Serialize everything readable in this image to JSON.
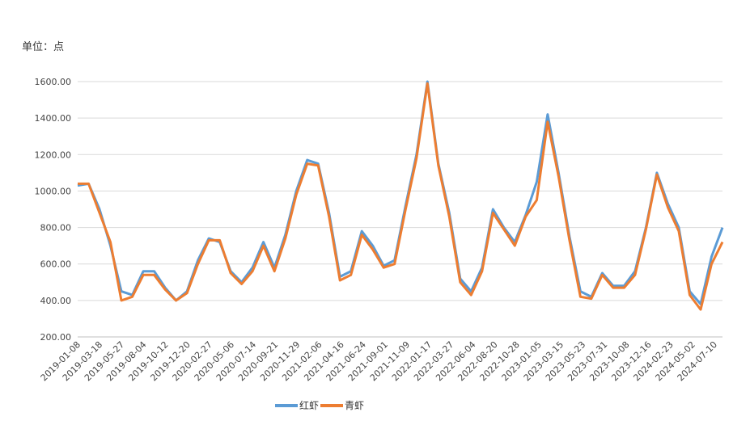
{
  "chart_data": {
    "type": "line",
    "unit_label": "单位：点",
    "ylim": [
      200,
      1600
    ],
    "yticks": [
      "200.00",
      "400.00",
      "600.00",
      "800.00",
      "1000.00",
      "1200.00",
      "1400.00",
      "1600.00"
    ],
    "xtick_labels": [
      "2019-01-08",
      "2019-03-18",
      "2019-05-27",
      "2019-08-04",
      "2019-10-12",
      "2019-12-20",
      "2020-02-27",
      "2020-05-06",
      "2020-07-14",
      "2020-09-21",
      "2020-11-29",
      "2021-02-06",
      "2021-04-16",
      "2021-06-24",
      "2021-09-01",
      "2021-11-09",
      "2022-01-17",
      "2022-03-27",
      "2022-06-04",
      "2022-08-20",
      "2022-10-28",
      "2023-01-05",
      "2023-03-15",
      "2023-05-23",
      "2023-07-31",
      "2023-10-08",
      "2023-12-16",
      "2024-02-23",
      "2024-05-02",
      "2024-07-10"
    ],
    "grid": true,
    "legend_position": "bottom",
    "colors": {
      "series1": "#5B9BD5",
      "series2": "#ED7D31"
    },
    "x": [
      "2019-01-08",
      "2019-02-12",
      "2019-03-18",
      "2019-04-22",
      "2019-05-27",
      "2019-07-01",
      "2019-08-04",
      "2019-09-08",
      "2019-10-12",
      "2019-11-16",
      "2019-12-20",
      "2020-01-24",
      "2020-02-27",
      "2020-04-02",
      "2020-05-06",
      "2020-06-10",
      "2020-07-14",
      "2020-08-18",
      "2020-09-21",
      "2020-10-26",
      "2020-11-29",
      "2021-01-03",
      "2021-02-06",
      "2021-03-13",
      "2021-04-16",
      "2021-05-21",
      "2021-06-24",
      "2021-07-29",
      "2021-09-01",
      "2021-10-06",
      "2021-11-09",
      "2021-12-14",
      "2022-01-17",
      "2022-02-21",
      "2022-03-27",
      "2022-05-01",
      "2022-06-04",
      "2022-07-12",
      "2022-08-20",
      "2022-09-24",
      "2022-10-28",
      "2022-12-02",
      "2023-01-05",
      "2023-02-10",
      "2023-03-15",
      "2023-04-19",
      "2023-05-23",
      "2023-06-27",
      "2023-07-31",
      "2023-09-04",
      "2023-10-08",
      "2023-11-12",
      "2023-12-16",
      "2024-01-20",
      "2024-02-23",
      "2024-03-28",
      "2024-05-02",
      "2024-06-06",
      "2024-07-10",
      "2024-08-14"
    ],
    "series": [
      {
        "name": "红虾",
        "values": [
          1030,
          1040,
          900,
          700,
          450,
          430,
          560,
          560,
          470,
          400,
          450,
          620,
          740,
          720,
          560,
          500,
          580,
          720,
          580,
          760,
          1000,
          1170,
          1150,
          880,
          530,
          560,
          780,
          700,
          590,
          620,
          920,
          1200,
          1600,
          1150,
          880,
          520,
          450,
          580,
          900,
          800,
          720,
          870,
          1050,
          1420,
          1100,
          750,
          450,
          420,
          550,
          480,
          480,
          560,
          800,
          1100,
          930,
          800,
          450,
          380,
          640,
          800
        ]
      },
      {
        "name": "青虾",
        "values": [
          1040,
          1040,
          880,
          720,
          400,
          420,
          540,
          540,
          460,
          400,
          440,
          600,
          730,
          730,
          550,
          490,
          560,
          700,
          560,
          740,
          980,
          1150,
          1140,
          860,
          510,
          540,
          760,
          680,
          580,
          600,
          900,
          1180,
          1590,
          1140,
          860,
          500,
          430,
          560,
          880,
          790,
          700,
          860,
          950,
          1380,
          1080,
          730,
          420,
          410,
          540,
          470,
          470,
          540,
          790,
          1090,
          910,
          780,
          430,
          350,
          600,
          720
        ]
      }
    ]
  }
}
